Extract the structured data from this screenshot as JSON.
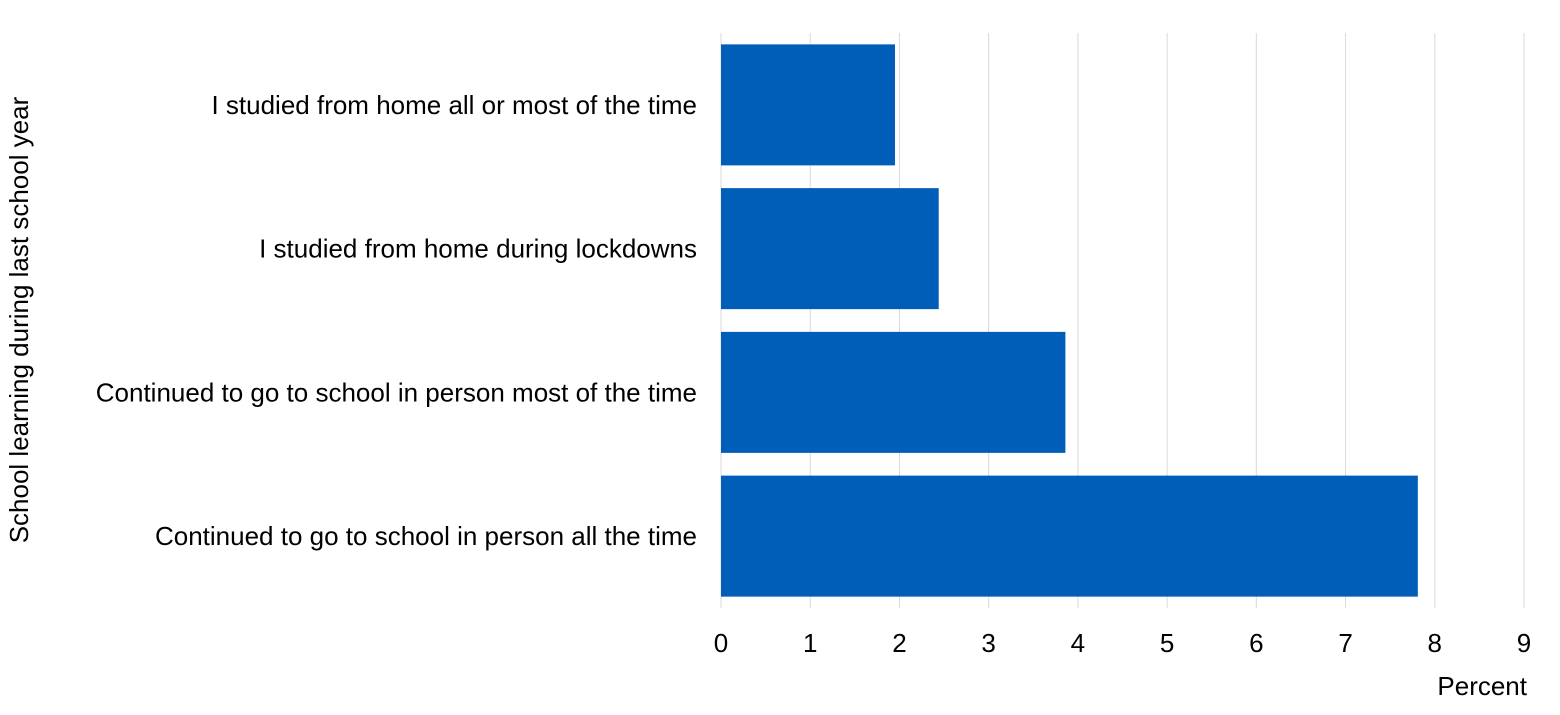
{
  "chart_data": {
    "type": "bar",
    "orientation": "horizontal",
    "categories": [
      "I studied from home all or most of the time",
      "I studied from home during lockdowns",
      "Continued to go to school in person most of the time",
      "Continued to go to school in person all the time"
    ],
    "values": [
      1.95,
      2.44,
      3.86,
      7.81
    ],
    "xlabel": "Percent",
    "ylabel": "School learning during last school year",
    "xlim": [
      0,
      9
    ],
    "xticks": [
      "0",
      "1",
      "2",
      "3",
      "4",
      "5",
      "6",
      "7",
      "8",
      "9"
    ],
    "grid": true,
    "bar_color": "#005EB8",
    "grid_color": "#D9D9D9"
  }
}
